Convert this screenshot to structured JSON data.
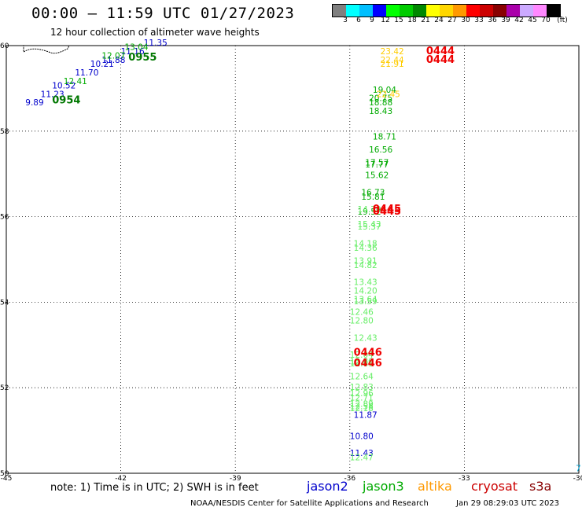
{
  "header": {
    "title": "00:00 — 11:59 UTC 01/27/2023",
    "subtitle": "12 hour collection of altimeter wave heights"
  },
  "colorbar": {
    "colors": [
      "#808080",
      "#00ffff",
      "#00bfff",
      "#0000ff",
      "#00ff00",
      "#00cc00",
      "#008800",
      "#ffff00",
      "#ffd700",
      "#ff9900",
      "#ff0000",
      "#cc0000",
      "#880000",
      "#aa00aa",
      "#ccaaff",
      "#ff88ff",
      "#000000"
    ],
    "labels": [
      "3",
      "6",
      "9",
      "12",
      "15",
      "18",
      "21",
      "24",
      "27",
      "30",
      "33",
      "36",
      "39",
      "42",
      "45",
      "70",
      "(ft)"
    ]
  },
  "axes": {
    "xlim": [
      -45,
      -30
    ],
    "ylim": [
      50,
      60
    ],
    "xticks": [
      "-45",
      "-42",
      "-39",
      "-36",
      "-33",
      "-30"
    ],
    "yticks": [
      "50",
      "52",
      "54",
      "56",
      "58",
      "60"
    ],
    "grid": "dotted"
  },
  "map_data": {
    "tracks": [
      {
        "satellite": "jason2",
        "color": "#0000cc",
        "points": [
          {
            "lon": -44.5,
            "lat": 58.6,
            "label": "9.89"
          },
          {
            "lon": -44.1,
            "lat": 58.8,
            "label": "11.23"
          },
          {
            "lon": -43.8,
            "lat": 59.0,
            "label": "10.52"
          },
          {
            "lon": -43.2,
            "lat": 59.3,
            "label": "11.70"
          },
          {
            "lon": -42.8,
            "lat": 59.5,
            "label": "10.21"
          },
          {
            "lon": -42.5,
            "lat": 59.6,
            "label": "11.88"
          },
          {
            "lon": -42.0,
            "lat": 59.8,
            "label": "11.16"
          },
          {
            "lon": -41.4,
            "lat": 60.0,
            "label": "11.35"
          },
          {
            "lon": -35.9,
            "lat": 51.3,
            "label": "11.87"
          },
          {
            "lon": -36.0,
            "lat": 50.8,
            "label": "10.80"
          },
          {
            "lon": -36.0,
            "lat": 50.4,
            "label": "11.43"
          }
        ]
      },
      {
        "satellite": "jason3",
        "color": "#00aa00",
        "points": [
          {
            "lon": -43.5,
            "lat": 59.1,
            "label": "12.41"
          },
          {
            "lon": -42.5,
            "lat": 59.7,
            "label": "12.07"
          },
          {
            "lon": -41.9,
            "lat": 59.9,
            "label": "13.04"
          },
          {
            "lon": -35.4,
            "lat": 58.9,
            "label": "19.04"
          },
          {
            "lon": -35.5,
            "lat": 58.7,
            "label": "20.75"
          },
          {
            "lon": -35.5,
            "lat": 58.6,
            "label": "18.88"
          },
          {
            "lon": -35.5,
            "lat": 58.4,
            "label": "18.43"
          },
          {
            "lon": -35.4,
            "lat": 57.8,
            "label": "18.71"
          },
          {
            "lon": -35.5,
            "lat": 57.5,
            "label": "16.56"
          },
          {
            "lon": -35.6,
            "lat": 57.2,
            "label": "17.57"
          },
          {
            "lon": -35.6,
            "lat": 57.15,
            "label": "17.77"
          },
          {
            "lon": -35.6,
            "lat": 56.9,
            "label": "15.62"
          },
          {
            "lon": -35.7,
            "lat": 56.5,
            "label": "16.73"
          },
          {
            "lon": -35.7,
            "lat": 56.4,
            "label": "15.81"
          },
          {
            "lon": -35.8,
            "lat": 56.05,
            "label": "19.52"
          }
        ]
      },
      {
        "satellite": "altika",
        "color": "#ffcc00",
        "points": [
          {
            "lon": -35.2,
            "lat": 59.8,
            "label": "23.42"
          },
          {
            "lon": -35.2,
            "lat": 59.6,
            "label": "22.44"
          },
          {
            "lon": -35.2,
            "lat": 59.5,
            "label": "21.91"
          },
          {
            "lon": -35.3,
            "lat": 58.8,
            "label": "22.45"
          }
        ]
      },
      {
        "satellite": "s3a",
        "color": "#66ee66",
        "points": [
          {
            "lon": -35.8,
            "lat": 56.1,
            "label": "14.70"
          },
          {
            "lon": -35.8,
            "lat": 55.75,
            "label": "15.43"
          },
          {
            "lon": -35.8,
            "lat": 55.7,
            "label": "15.37"
          },
          {
            "lon": -35.9,
            "lat": 55.3,
            "label": "14.18"
          },
          {
            "lon": -35.9,
            "lat": 55.2,
            "label": "14.36"
          },
          {
            "lon": -35.9,
            "lat": 54.9,
            "label": "13.91"
          },
          {
            "lon": -35.9,
            "lat": 54.8,
            "label": "14.82"
          },
          {
            "lon": -35.9,
            "lat": 54.4,
            "label": "13.43"
          },
          {
            "lon": -35.9,
            "lat": 54.2,
            "label": "14.20"
          },
          {
            "lon": -35.9,
            "lat": 54.0,
            "label": "13.64"
          },
          {
            "lon": -35.9,
            "lat": 53.95,
            "label": "13.59"
          },
          {
            "lon": -36.0,
            "lat": 53.7,
            "label": "12.46"
          },
          {
            "lon": -36.0,
            "lat": 53.5,
            "label": "12.80"
          },
          {
            "lon": -35.9,
            "lat": 53.1,
            "label": "12.43"
          },
          {
            "lon": -36.0,
            "lat": 52.7,
            "label": "12.04"
          },
          {
            "lon": -36.0,
            "lat": 52.55,
            "label": "12.80"
          },
          {
            "lon": -36.0,
            "lat": 52.5,
            "label": "12.81"
          },
          {
            "lon": -36.0,
            "lat": 52.2,
            "label": "12.64"
          },
          {
            "lon": -36.0,
            "lat": 51.95,
            "label": "12.83"
          },
          {
            "lon": -36.0,
            "lat": 51.8,
            "label": "12.96"
          },
          {
            "lon": -36.0,
            "lat": 51.7,
            "label": "12.71"
          },
          {
            "lon": -36.0,
            "lat": 51.55,
            "label": "12.89"
          },
          {
            "lon": -36.0,
            "lat": 51.5,
            "label": "12.58"
          },
          {
            "lon": -36.0,
            "lat": 51.45,
            "label": "12.18"
          },
          {
            "lon": -36.0,
            "lat": 50.3,
            "label": "12.47"
          }
        ]
      }
    ],
    "pass_labels": [
      {
        "lon": -43.8,
        "lat": 58.65,
        "label": "0954",
        "color": "#007700"
      },
      {
        "lon": -41.8,
        "lat": 59.65,
        "label": "0955",
        "color": "#007700"
      },
      {
        "lon": -34.0,
        "lat": 59.8,
        "label": "0444",
        "color": "#ee0000"
      },
      {
        "lon": -34.0,
        "lat": 59.6,
        "label": "0444",
        "color": "#ee0000"
      },
      {
        "lon": -35.4,
        "lat": 56.1,
        "label": "0445",
        "color": "#ee0000"
      },
      {
        "lon": -35.4,
        "lat": 56.05,
        "label": "0445",
        "color": "#ee0000"
      },
      {
        "lon": -35.9,
        "lat": 52.75,
        "label": "0446",
        "color": "#ee0000"
      },
      {
        "lon": -35.9,
        "lat": 52.5,
        "label": "0446",
        "color": "#ee0000"
      }
    ],
    "edge_label": {
      "lon": -30.0,
      "lat": 50.05,
      "label": "7",
      "color": "#00aadd"
    }
  },
  "note": "note: 1) Time is in UTC; 2) SWH is in feet",
  "satellites": [
    {
      "name": "jason2",
      "color": "#0000cc"
    },
    {
      "name": "jason3",
      "color": "#00aa00"
    },
    {
      "name": "altika",
      "color": "#ff9900"
    },
    {
      "name": "cryosat",
      "color": "#cc0000"
    },
    {
      "name": "s3a",
      "color": "#880000"
    }
  ],
  "footer": {
    "credit": "NOAA/NESDIS Center for Satellite Applications and Research",
    "datestamp": "Jan 29 08:29:03 UTC 2023"
  }
}
